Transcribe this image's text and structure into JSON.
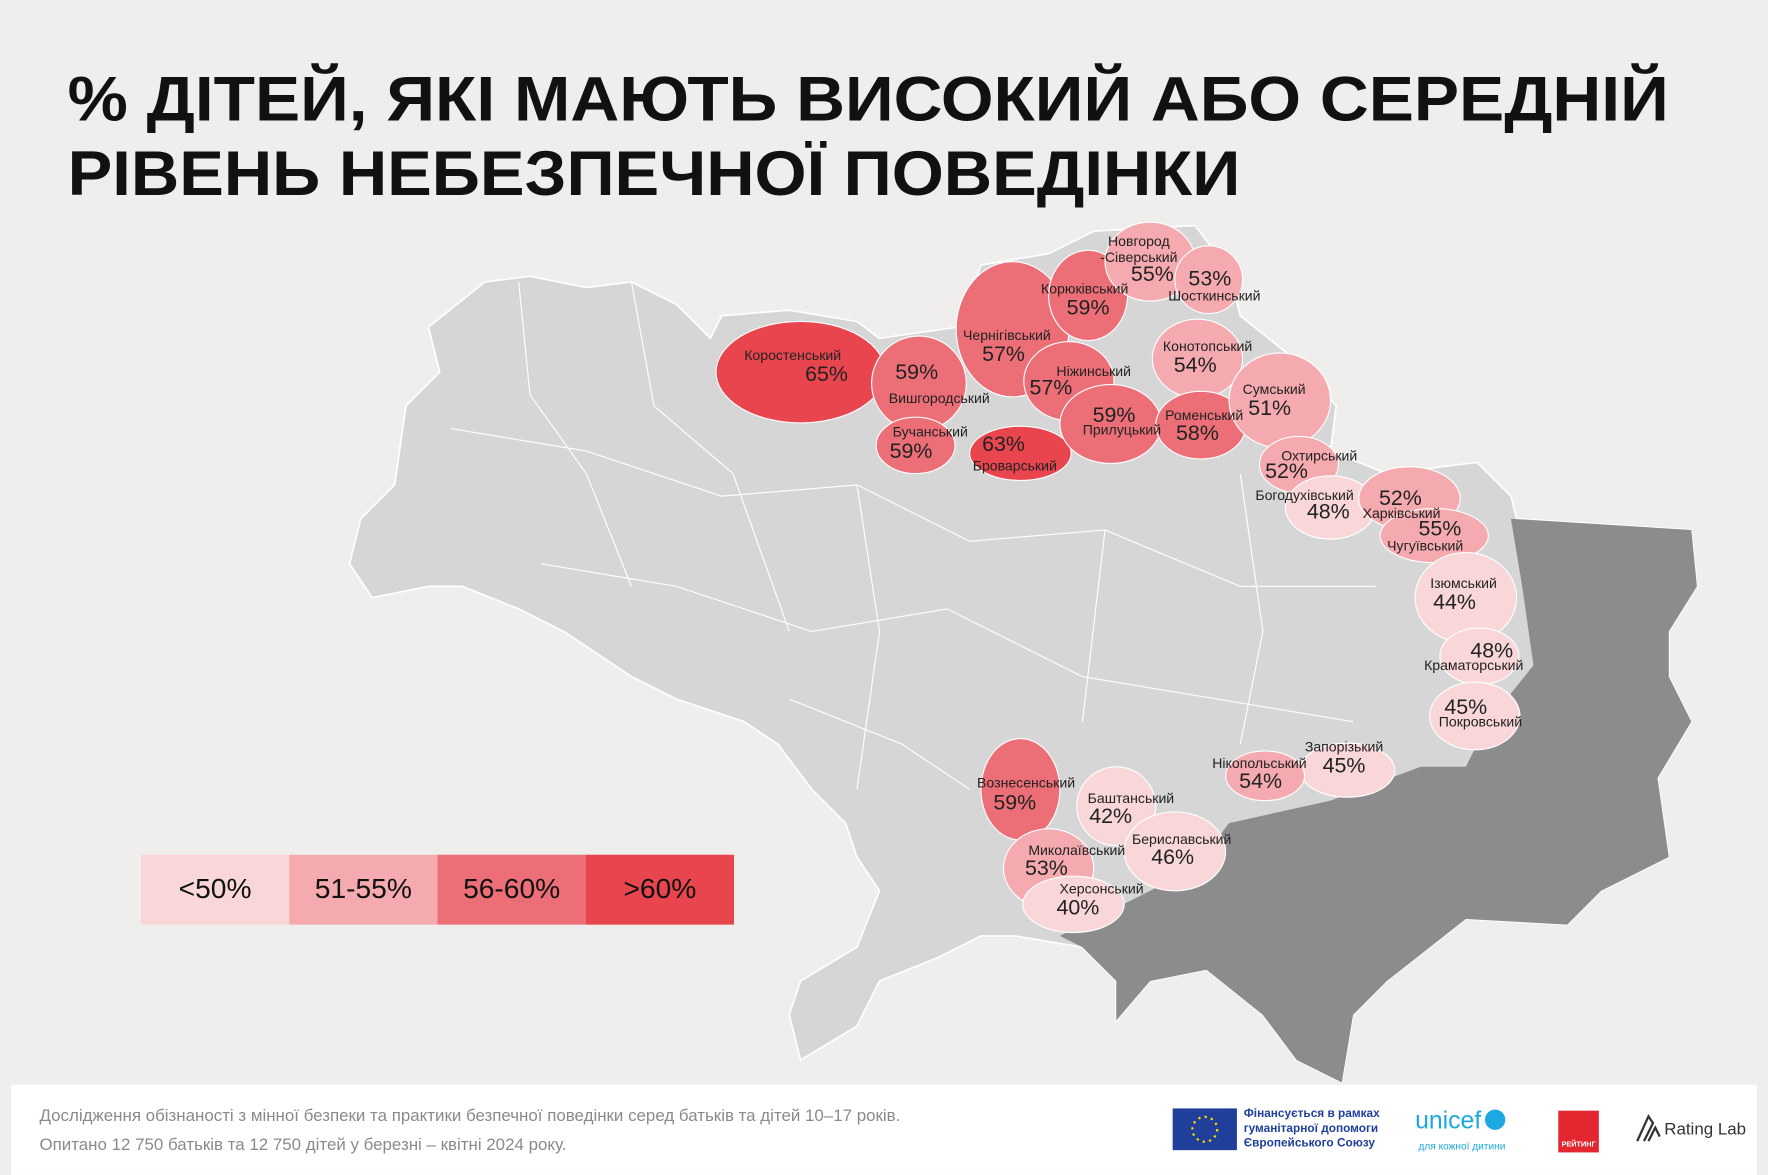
{
  "title": {
    "lines": [
      "% ДІТЕЙ, ЯКІ МАЮТЬ ВИСОКИЙ АБО СЕРЕДНІЙ",
      "РІВЕНЬ НЕБЕЗПЕЧНОЇ ПОВЕДІНКИ"
    ]
  },
  "legend": [
    {
      "label": "<50%",
      "color": "#f9d7d9"
    },
    {
      "label": "51-55%",
      "color": "#f4aaae"
    },
    {
      "label": "56-60%",
      "color": "#ec6f78"
    },
    {
      "label": ">60%",
      "color": "#e8454f"
    }
  ],
  "regions": [
    {
      "name": "Коростенський",
      "value": "65%",
      "color": "#e8454f"
    },
    {
      "name": "Вишгородський",
      "value": "59%",
      "color": "#ec6f78"
    },
    {
      "name": "Бучанський",
      "value": "59%",
      "color": "#ec6f78"
    },
    {
      "name": "Броварський",
      "value": "63%",
      "color": "#e8454f"
    },
    {
      "name": "Чернігівський",
      "value": "57%",
      "color": "#ec6f78"
    },
    {
      "name": "Корюківський",
      "value": "59%",
      "color": "#ec6f78"
    },
    {
      "name_lines": [
        "Новгород",
        "-Сіверський"
      ],
      "value": "55%",
      "color": "#f4aaae"
    },
    {
      "name": "Шосткинський",
      "value": "53%",
      "color": "#f4aaae"
    },
    {
      "name": "Конотопський",
      "value": "54%",
      "color": "#f4aaae"
    },
    {
      "name": "Ніжинський",
      "value": "57%",
      "color": "#ec6f78"
    },
    {
      "name": "Прилуцький",
      "value": "59%",
      "color": "#ec6f78"
    },
    {
      "name": "Роменський",
      "value": "58%",
      "color": "#ec6f78"
    },
    {
      "name": "Сумський",
      "value": "51%",
      "color": "#f4aaae"
    },
    {
      "name": "Охтирський",
      "value": "52%",
      "color": "#f4aaae"
    },
    {
      "name": "Богодухівський",
      "value": "48%",
      "color": "#f9d7d9"
    },
    {
      "name": "Харківський",
      "value": "52%",
      "color": "#f4aaae"
    },
    {
      "name": "Чугуївський",
      "value": "55%",
      "color": "#f4aaae"
    },
    {
      "name": "Ізюмський",
      "value": "44%",
      "color": "#f9d7d9"
    },
    {
      "name": "Краматорський",
      "value": "48%",
      "color": "#f9d7d9"
    },
    {
      "name": "Покровський",
      "value": "45%",
      "color": "#f9d7d9"
    },
    {
      "name": "Запорізький",
      "value": "45%",
      "color": "#f9d7d9"
    },
    {
      "name": "Нікопольський",
      "value": "54%",
      "color": "#f4aaae"
    },
    {
      "name": "Вознесенський",
      "value": "59%",
      "color": "#ec6f78"
    },
    {
      "name": "Баштанський",
      "value": "42%",
      "color": "#f9d7d9"
    },
    {
      "name": "Бериславський",
      "value": "46%",
      "color": "#f9d7d9"
    },
    {
      "name": "Миколаївський",
      "value": "53%",
      "color": "#f4aaae"
    },
    {
      "name": "Херсонський",
      "value": "40%",
      "color": "#f9d7d9"
    }
  ],
  "footer": {
    "lines": [
      "Дослідження обізнаності з мінної безпеки та практики безпечної поведінки серед батьків та дітей 10–17 років.",
      "Опитано 12 750 батьків та 12 750 дітей у березні – квітні 2024 року."
    ]
  },
  "logos": {
    "eu": [
      "Фінансується в рамках",
      "гуманітарної допомоги",
      "Європейського Союзу"
    ],
    "unicef": "unicef",
    "unicef_tagline": "для кожної дитини",
    "rating": "РЕЙТИНГ",
    "rating_lab": "Rating Lab"
  }
}
